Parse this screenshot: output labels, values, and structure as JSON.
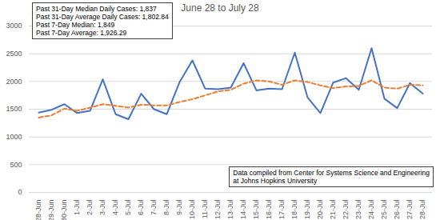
{
  "chart_data": {
    "type": "line",
    "title": "June 28 to July 28",
    "categories": [
      "28-Jun",
      "29-Jun",
      "30-Jun",
      "1-Jul",
      "2-Jul",
      "3-Jul",
      "4-Jul",
      "5-Jul",
      "6-Jul",
      "7-Jul",
      "8-Jul",
      "9-Jul",
      "10-Jul",
      "11-Jul",
      "12-Jul",
      "13-Jul",
      "14-Jul",
      "15-Jul",
      "16-Jul",
      "17-Jul",
      "18-Jul",
      "19-Jul",
      "20-Jul",
      "21-Jul",
      "22-Jul",
      "23-Jul",
      "24-Jul",
      "25-Jul",
      "26-Jul",
      "27-Jul",
      "28-Jul"
    ],
    "series": [
      {
        "color": "#4472c4",
        "line_style": "solid",
        "values": [
          1440,
          1490,
          1590,
          1430,
          1470,
          2040,
          1410,
          1320,
          1780,
          1500,
          1410,
          1990,
          2380,
          1870,
          1860,
          1890,
          2330,
          1840,
          1870,
          1860,
          2520,
          1710,
          1430,
          1980,
          2060,
          1850,
          2600,
          1690,
          1520,
          1970,
          1780
        ]
      },
      {
        "color": "#ed7d31",
        "line_style": "dashed",
        "values": [
          1350,
          1390,
          1510,
          1470,
          1530,
          1590,
          1560,
          1530,
          1580,
          1570,
          1570,
          1630,
          1680,
          1750,
          1820,
          1850,
          1960,
          2020,
          2000,
          1940,
          2020,
          1990,
          1930,
          1880,
          1910,
          1920,
          2020,
          1890,
          1870,
          1940,
          1930
        ]
      }
    ],
    "ylim": [
      0,
      3000
    ],
    "yticks": [
      0,
      500,
      1000,
      1500,
      2000,
      2500,
      3000
    ],
    "grid": true,
    "annotations": [
      {
        "lines": [
          "Past 31-Day Median Daily Cases: 1,837",
          "Past 31-Day Average Daily Cases: 1,802.84",
          "Past 7-Day Median: 1,849",
          "Past 7-Day Average: 1,926.29"
        ]
      },
      {
        "lines": [
          "Data compiled from Center for Systems Science and Engineering",
          "at Johns Hopkins University"
        ]
      }
    ]
  }
}
